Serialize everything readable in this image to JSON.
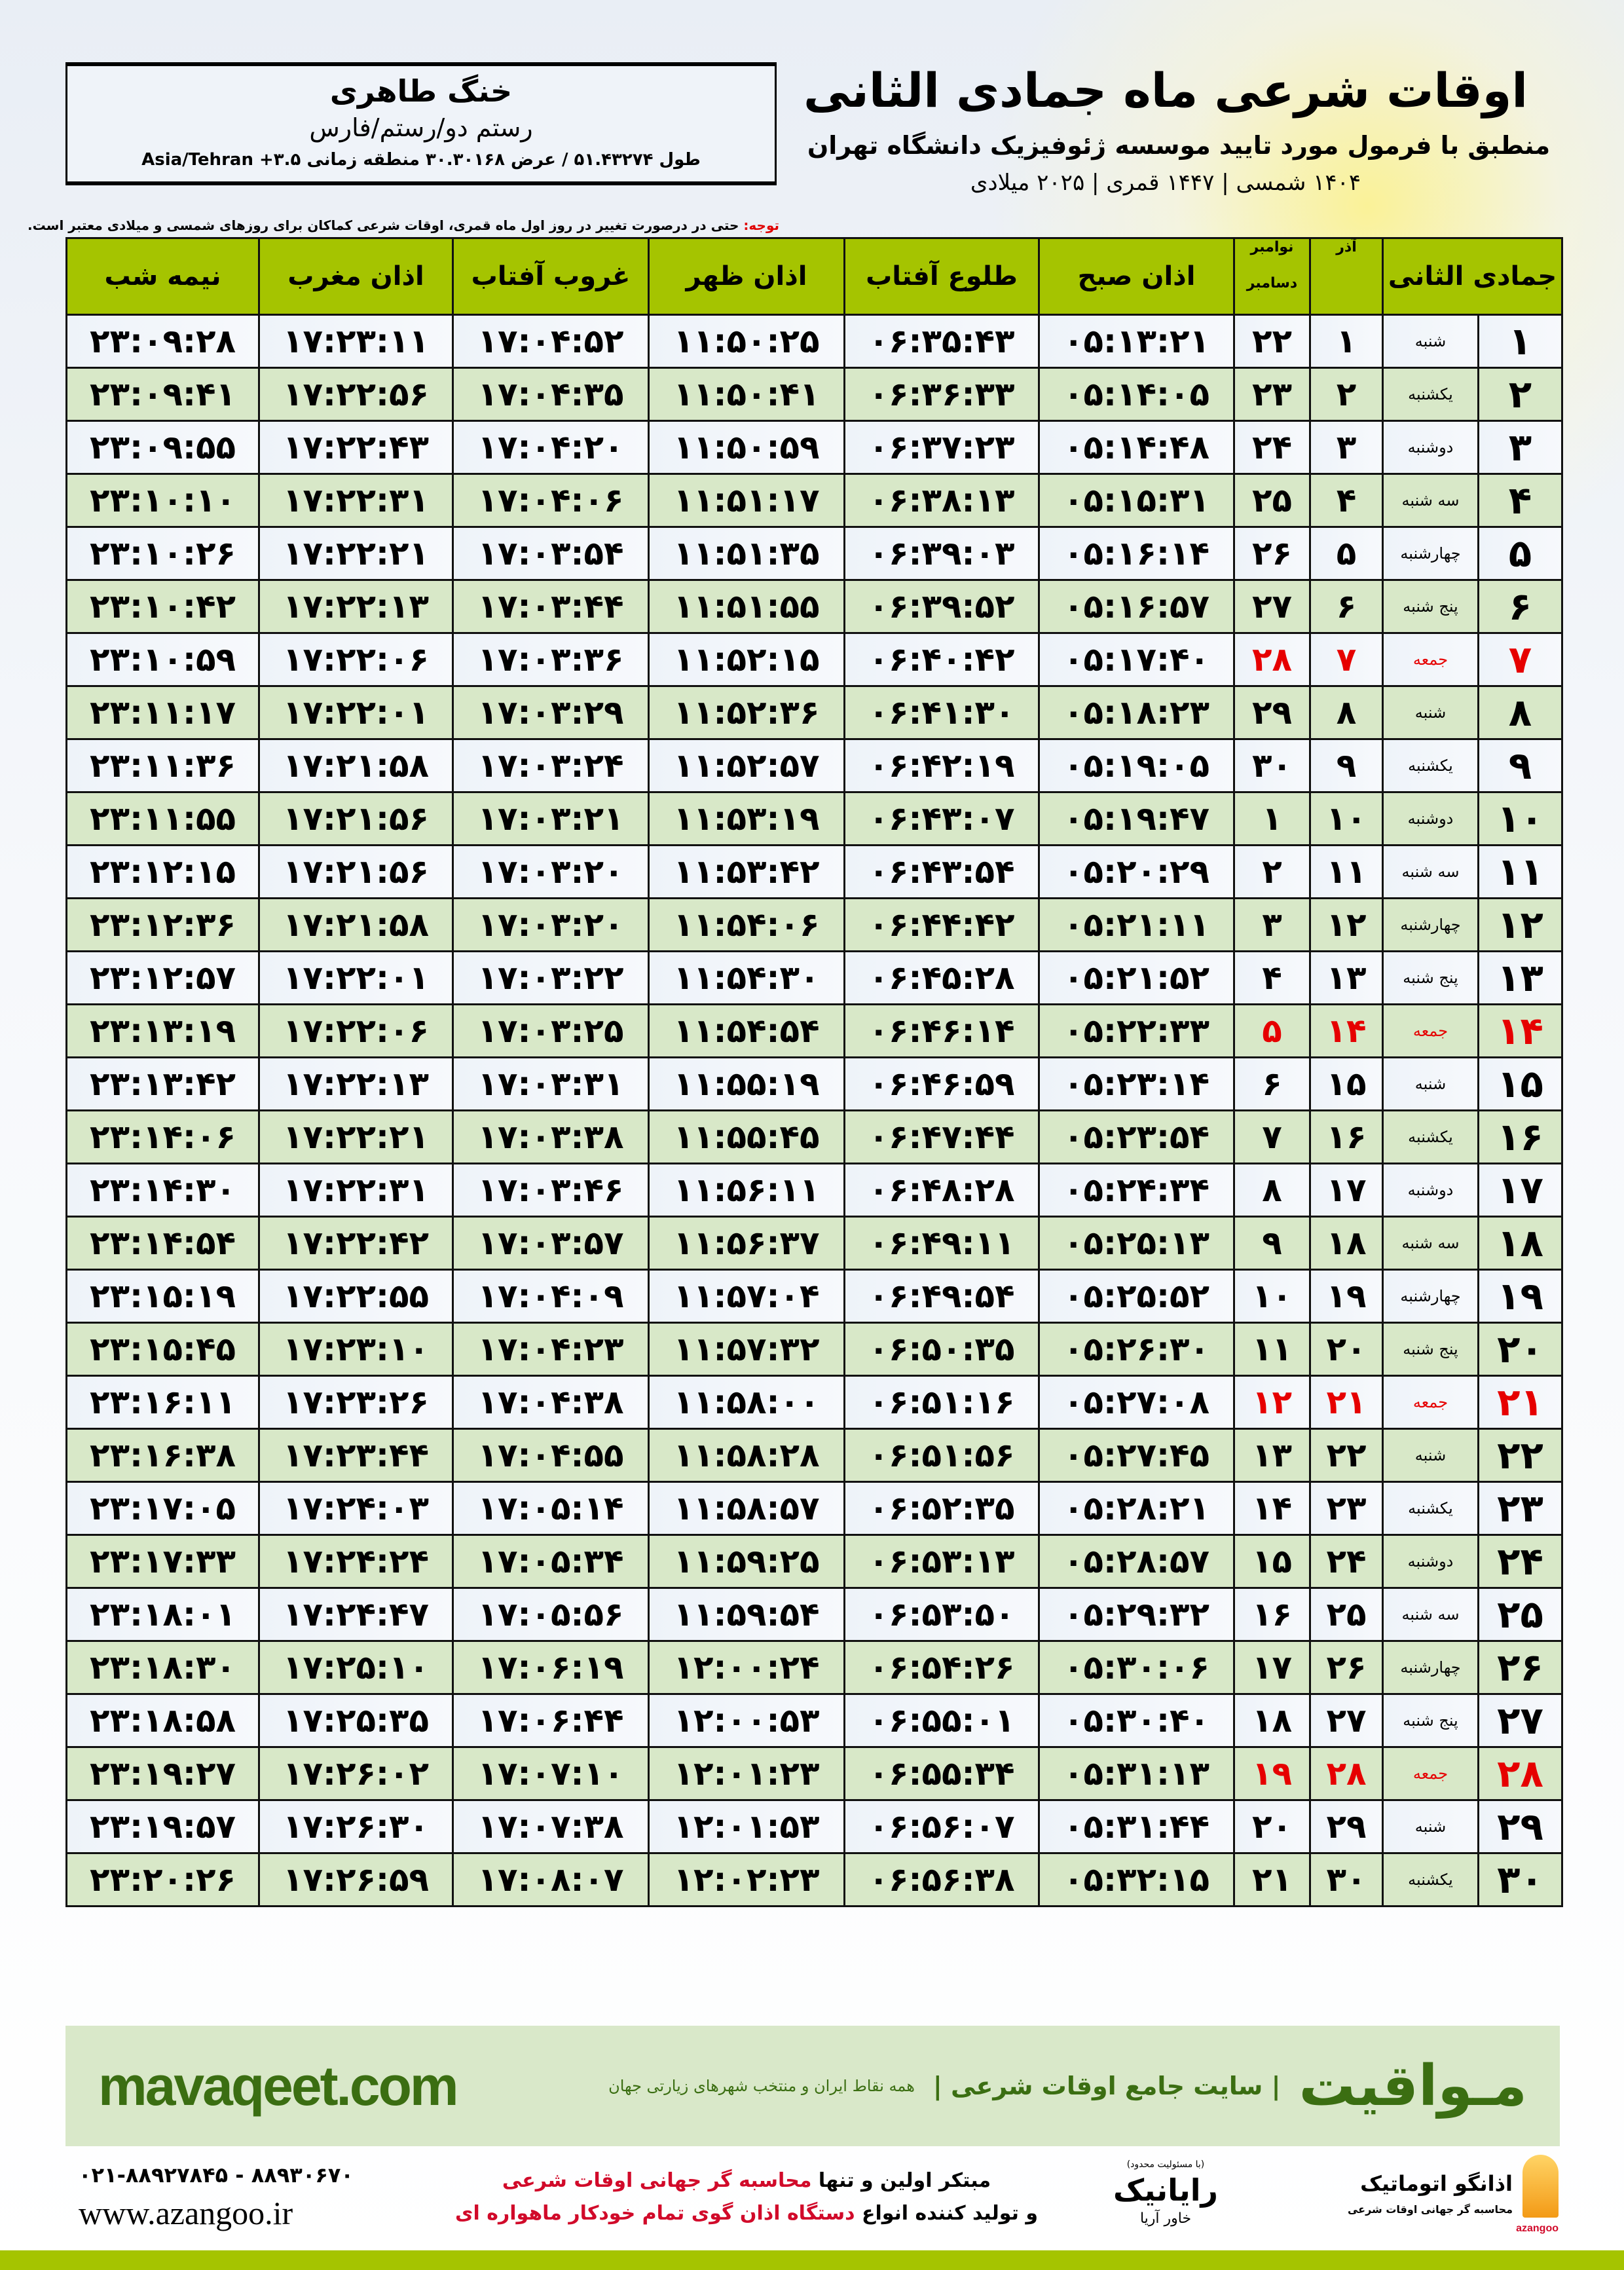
{
  "colors": {
    "header_green": "#a5c400",
    "row_green": "#d8e8c8",
    "friday_red": "#e60000",
    "brand_green": "#3b6e12",
    "promo_red": "#d10a2a"
  },
  "location": {
    "city": "خنگ طاهری",
    "path": "رستم دو/رستم/فارس",
    "coords": "طول ۵۱.۴۳۲۷۴ / عرض ۳۰.۳۰۱۶۸ منطقه زمانی ۳.۵+ Asia/Tehran"
  },
  "title": {
    "main": "اوقات شرعی ماه جمادی الثانی",
    "sub": "منطبق با فرمول مورد تایید موسسه ژئوفیزیک دانشگاه تهران",
    "dates": "۱۴۰۴ شمسی | ۱۴۴۷ قمری | ۲۰۲۵ میلادی"
  },
  "note": {
    "label": "توجه:",
    "text": " حتی در درصورت تغییر در روز اول ماه قمری، اوقات شرعی کماکان برای روزهای شمسی و میلادی معتبر است."
  },
  "table": {
    "headers": {
      "hijri": "جمادی الثانی",
      "azar": "آذر",
      "nov": "نوامبر",
      "dec": "دسامبر",
      "fajr": "اذان صبح",
      "sunrise": "طلوع آفتاب",
      "dhuhr": "اذان ظهر",
      "sunset": "غروب آفتاب",
      "maghrib": "اذان مغرب",
      "midnight": "نیمه شب"
    },
    "rows": [
      {
        "hijri": "۱",
        "weekday": "شنبه",
        "azar": "۱",
        "greg": "۲۲",
        "fajr": "۰۵:۱۳:۲۱",
        "sunrise": "۰۶:۳۵:۴۳",
        "dhuhr": "۱۱:۵۰:۲۵",
        "sunset": "۱۷:۰۴:۵۲",
        "maghrib": "۱۷:۲۳:۱۱",
        "midnight": "۲۳:۰۹:۲۸",
        "friday": false
      },
      {
        "hijri": "۲",
        "weekday": "یکشنبه",
        "azar": "۲",
        "greg": "۲۳",
        "fajr": "۰۵:۱۴:۰۵",
        "sunrise": "۰۶:۳۶:۳۳",
        "dhuhr": "۱۱:۵۰:۴۱",
        "sunset": "۱۷:۰۴:۳۵",
        "maghrib": "۱۷:۲۲:۵۶",
        "midnight": "۲۳:۰۹:۴۱",
        "friday": false
      },
      {
        "hijri": "۳",
        "weekday": "دوشنبه",
        "azar": "۳",
        "greg": "۲۴",
        "fajr": "۰۵:۱۴:۴۸",
        "sunrise": "۰۶:۳۷:۲۳",
        "dhuhr": "۱۱:۵۰:۵۹",
        "sunset": "۱۷:۰۴:۲۰",
        "maghrib": "۱۷:۲۲:۴۳",
        "midnight": "۲۳:۰۹:۵۵",
        "friday": false
      },
      {
        "hijri": "۴",
        "weekday": "سه شنبه",
        "azar": "۴",
        "greg": "۲۵",
        "fajr": "۰۵:۱۵:۳۱",
        "sunrise": "۰۶:۳۸:۱۳",
        "dhuhr": "۱۱:۵۱:۱۷",
        "sunset": "۱۷:۰۴:۰۶",
        "maghrib": "۱۷:۲۲:۳۱",
        "midnight": "۲۳:۱۰:۱۰",
        "friday": false
      },
      {
        "hijri": "۵",
        "weekday": "چهارشنبه",
        "azar": "۵",
        "greg": "۲۶",
        "fajr": "۰۵:۱۶:۱۴",
        "sunrise": "۰۶:۳۹:۰۳",
        "dhuhr": "۱۱:۵۱:۳۵",
        "sunset": "۱۷:۰۳:۵۴",
        "maghrib": "۱۷:۲۲:۲۱",
        "midnight": "۲۳:۱۰:۲۶",
        "friday": false
      },
      {
        "hijri": "۶",
        "weekday": "پنج شنبه",
        "azar": "۶",
        "greg": "۲۷",
        "fajr": "۰۵:۱۶:۵۷",
        "sunrise": "۰۶:۳۹:۵۲",
        "dhuhr": "۱۱:۵۱:۵۵",
        "sunset": "۱۷:۰۳:۴۴",
        "maghrib": "۱۷:۲۲:۱۳",
        "midnight": "۲۳:۱۰:۴۲",
        "friday": false
      },
      {
        "hijri": "۷",
        "weekday": "جمعه",
        "azar": "۷",
        "greg": "۲۸",
        "fajr": "۰۵:۱۷:۴۰",
        "sunrise": "۰۶:۴۰:۴۲",
        "dhuhr": "۱۱:۵۲:۱۵",
        "sunset": "۱۷:۰۳:۳۶",
        "maghrib": "۱۷:۲۲:۰۶",
        "midnight": "۲۳:۱۰:۵۹",
        "friday": true
      },
      {
        "hijri": "۸",
        "weekday": "شنبه",
        "azar": "۸",
        "greg": "۲۹",
        "fajr": "۰۵:۱۸:۲۳",
        "sunrise": "۰۶:۴۱:۳۰",
        "dhuhr": "۱۱:۵۲:۳۶",
        "sunset": "۱۷:۰۳:۲۹",
        "maghrib": "۱۷:۲۲:۰۱",
        "midnight": "۲۳:۱۱:۱۷",
        "friday": false
      },
      {
        "hijri": "۹",
        "weekday": "یکشنبه",
        "azar": "۹",
        "greg": "۳۰",
        "fajr": "۰۵:۱۹:۰۵",
        "sunrise": "۰۶:۴۲:۱۹",
        "dhuhr": "۱۱:۵۲:۵۷",
        "sunset": "۱۷:۰۳:۲۴",
        "maghrib": "۱۷:۲۱:۵۸",
        "midnight": "۲۳:۱۱:۳۶",
        "friday": false
      },
      {
        "hijri": "۱۰",
        "weekday": "دوشنبه",
        "azar": "۱۰",
        "greg": "۱",
        "fajr": "۰۵:۱۹:۴۷",
        "sunrise": "۰۶:۴۳:۰۷",
        "dhuhr": "۱۱:۵۳:۱۹",
        "sunset": "۱۷:۰۳:۲۱",
        "maghrib": "۱۷:۲۱:۵۶",
        "midnight": "۲۳:۱۱:۵۵",
        "friday": false
      },
      {
        "hijri": "۱۱",
        "weekday": "سه شنبه",
        "azar": "۱۱",
        "greg": "۲",
        "fajr": "۰۵:۲۰:۲۹",
        "sunrise": "۰۶:۴۳:۵۴",
        "dhuhr": "۱۱:۵۳:۴۲",
        "sunset": "۱۷:۰۳:۲۰",
        "maghrib": "۱۷:۲۱:۵۶",
        "midnight": "۲۳:۱۲:۱۵",
        "friday": false
      },
      {
        "hijri": "۱۲",
        "weekday": "چهارشنبه",
        "azar": "۱۲",
        "greg": "۳",
        "fajr": "۰۵:۲۱:۱۱",
        "sunrise": "۰۶:۴۴:۴۲",
        "dhuhr": "۱۱:۵۴:۰۶",
        "sunset": "۱۷:۰۳:۲۰",
        "maghrib": "۱۷:۲۱:۵۸",
        "midnight": "۲۳:۱۲:۳۶",
        "friday": false
      },
      {
        "hijri": "۱۳",
        "weekday": "پنج شنبه",
        "azar": "۱۳",
        "greg": "۴",
        "fajr": "۰۵:۲۱:۵۲",
        "sunrise": "۰۶:۴۵:۲۸",
        "dhuhr": "۱۱:۵۴:۳۰",
        "sunset": "۱۷:۰۳:۲۲",
        "maghrib": "۱۷:۲۲:۰۱",
        "midnight": "۲۳:۱۲:۵۷",
        "friday": false
      },
      {
        "hijri": "۱۴",
        "weekday": "جمعه",
        "azar": "۱۴",
        "greg": "۵",
        "fajr": "۰۵:۲۲:۳۳",
        "sunrise": "۰۶:۴۶:۱۴",
        "dhuhr": "۱۱:۵۴:۵۴",
        "sunset": "۱۷:۰۳:۲۵",
        "maghrib": "۱۷:۲۲:۰۶",
        "midnight": "۲۳:۱۳:۱۹",
        "friday": true
      },
      {
        "hijri": "۱۵",
        "weekday": "شنبه",
        "azar": "۱۵",
        "greg": "۶",
        "fajr": "۰۵:۲۳:۱۴",
        "sunrise": "۰۶:۴۶:۵۹",
        "dhuhr": "۱۱:۵۵:۱۹",
        "sunset": "۱۷:۰۳:۳۱",
        "maghrib": "۱۷:۲۲:۱۳",
        "midnight": "۲۳:۱۳:۴۲",
        "friday": false
      },
      {
        "hijri": "۱۶",
        "weekday": "یکشنبه",
        "azar": "۱۶",
        "greg": "۷",
        "fajr": "۰۵:۲۳:۵۴",
        "sunrise": "۰۶:۴۷:۴۴",
        "dhuhr": "۱۱:۵۵:۴۵",
        "sunset": "۱۷:۰۳:۳۸",
        "maghrib": "۱۷:۲۲:۲۱",
        "midnight": "۲۳:۱۴:۰۶",
        "friday": false
      },
      {
        "hijri": "۱۷",
        "weekday": "دوشنبه",
        "azar": "۱۷",
        "greg": "۸",
        "fajr": "۰۵:۲۴:۳۴",
        "sunrise": "۰۶:۴۸:۲۸",
        "dhuhr": "۱۱:۵۶:۱۱",
        "sunset": "۱۷:۰۳:۴۶",
        "maghrib": "۱۷:۲۲:۳۱",
        "midnight": "۲۳:۱۴:۳۰",
        "friday": false
      },
      {
        "hijri": "۱۸",
        "weekday": "سه شنبه",
        "azar": "۱۸",
        "greg": "۹",
        "fajr": "۰۵:۲۵:۱۳",
        "sunrise": "۰۶:۴۹:۱۱",
        "dhuhr": "۱۱:۵۶:۳۷",
        "sunset": "۱۷:۰۳:۵۷",
        "maghrib": "۱۷:۲۲:۴۲",
        "midnight": "۲۳:۱۴:۵۴",
        "friday": false
      },
      {
        "hijri": "۱۹",
        "weekday": "چهارشنبه",
        "azar": "۱۹",
        "greg": "۱۰",
        "fajr": "۰۵:۲۵:۵۲",
        "sunrise": "۰۶:۴۹:۵۴",
        "dhuhr": "۱۱:۵۷:۰۴",
        "sunset": "۱۷:۰۴:۰۹",
        "maghrib": "۱۷:۲۲:۵۵",
        "midnight": "۲۳:۱۵:۱۹",
        "friday": false
      },
      {
        "hijri": "۲۰",
        "weekday": "پنج شنبه",
        "azar": "۲۰",
        "greg": "۱۱",
        "fajr": "۰۵:۲۶:۳۰",
        "sunrise": "۰۶:۵۰:۳۵",
        "dhuhr": "۱۱:۵۷:۳۲",
        "sunset": "۱۷:۰۴:۲۳",
        "maghrib": "۱۷:۲۳:۱۰",
        "midnight": "۲۳:۱۵:۴۵",
        "friday": false
      },
      {
        "hijri": "۲۱",
        "weekday": "جمعه",
        "azar": "۲۱",
        "greg": "۱۲",
        "fajr": "۰۵:۲۷:۰۸",
        "sunrise": "۰۶:۵۱:۱۶",
        "dhuhr": "۱۱:۵۸:۰۰",
        "sunset": "۱۷:۰۴:۳۸",
        "maghrib": "۱۷:۲۳:۲۶",
        "midnight": "۲۳:۱۶:۱۱",
        "friday": true
      },
      {
        "hijri": "۲۲",
        "weekday": "شنبه",
        "azar": "۲۲",
        "greg": "۱۳",
        "fajr": "۰۵:۲۷:۴۵",
        "sunrise": "۰۶:۵۱:۵۶",
        "dhuhr": "۱۱:۵۸:۲۸",
        "sunset": "۱۷:۰۴:۵۵",
        "maghrib": "۱۷:۲۳:۴۴",
        "midnight": "۲۳:۱۶:۳۸",
        "friday": false
      },
      {
        "hijri": "۲۳",
        "weekday": "یکشنبه",
        "azar": "۲۳",
        "greg": "۱۴",
        "fajr": "۰۵:۲۸:۲۱",
        "sunrise": "۰۶:۵۲:۳۵",
        "dhuhr": "۱۱:۵۸:۵۷",
        "sunset": "۱۷:۰۵:۱۴",
        "maghrib": "۱۷:۲۴:۰۳",
        "midnight": "۲۳:۱۷:۰۵",
        "friday": false
      },
      {
        "hijri": "۲۴",
        "weekday": "دوشنبه",
        "azar": "۲۴",
        "greg": "۱۵",
        "fajr": "۰۵:۲۸:۵۷",
        "sunrise": "۰۶:۵۳:۱۳",
        "dhuhr": "۱۱:۵۹:۲۵",
        "sunset": "۱۷:۰۵:۳۴",
        "maghrib": "۱۷:۲۴:۲۴",
        "midnight": "۲۳:۱۷:۳۳",
        "friday": false
      },
      {
        "hijri": "۲۵",
        "weekday": "سه شنبه",
        "azar": "۲۵",
        "greg": "۱۶",
        "fajr": "۰۵:۲۹:۳۲",
        "sunrise": "۰۶:۵۳:۵۰",
        "dhuhr": "۱۱:۵۹:۵۴",
        "sunset": "۱۷:۰۵:۵۶",
        "maghrib": "۱۷:۲۴:۴۷",
        "midnight": "۲۳:۱۸:۰۱",
        "friday": false
      },
      {
        "hijri": "۲۶",
        "weekday": "چهارشنبه",
        "azar": "۲۶",
        "greg": "۱۷",
        "fajr": "۰۵:۳۰:۰۶",
        "sunrise": "۰۶:۵۴:۲۶",
        "dhuhr": "۱۲:۰۰:۲۴",
        "sunset": "۱۷:۰۶:۱۹",
        "maghrib": "۱۷:۲۵:۱۰",
        "midnight": "۲۳:۱۸:۳۰",
        "friday": false
      },
      {
        "hijri": "۲۷",
        "weekday": "پنج شنبه",
        "azar": "۲۷",
        "greg": "۱۸",
        "fajr": "۰۵:۳۰:۴۰",
        "sunrise": "۰۶:۵۵:۰۱",
        "dhuhr": "۱۲:۰۰:۵۳",
        "sunset": "۱۷:۰۶:۴۴",
        "maghrib": "۱۷:۲۵:۳۵",
        "midnight": "۲۳:۱۸:۵۸",
        "friday": false
      },
      {
        "hijri": "۲۸",
        "weekday": "جمعه",
        "azar": "۲۸",
        "greg": "۱۹",
        "fajr": "۰۵:۳۱:۱۳",
        "sunrise": "۰۶:۵۵:۳۴",
        "dhuhr": "۱۲:۰۱:۲۳",
        "sunset": "۱۷:۰۷:۱۰",
        "maghrib": "۱۷:۲۶:۰۲",
        "midnight": "۲۳:۱۹:۲۷",
        "friday": true
      },
      {
        "hijri": "۲۹",
        "weekday": "شنبه",
        "azar": "۲۹",
        "greg": "۲۰",
        "fajr": "۰۵:۳۱:۴۴",
        "sunrise": "۰۶:۵۶:۰۷",
        "dhuhr": "۱۲:۰۱:۵۳",
        "sunset": "۱۷:۰۷:۳۸",
        "maghrib": "۱۷:۲۶:۳۰",
        "midnight": "۲۳:۱۹:۵۷",
        "friday": false
      },
      {
        "hijri": "۳۰",
        "weekday": "یکشنبه",
        "azar": "۳۰",
        "greg": "۲۱",
        "fajr": "۰۵:۳۲:۱۵",
        "sunrise": "۰۶:۵۶:۳۸",
        "dhuhr": "۱۲:۰۲:۲۳",
        "sunset": "۱۷:۰۸:۰۷",
        "maghrib": "۱۷:۲۶:۵۹",
        "midnight": "۲۳:۲۰:۲۶",
        "friday": false
      }
    ]
  },
  "footer": {
    "brand": "مـواقیت",
    "slogan": "| سایت جامع اوقات شرعی |",
    "subslogan": "همه نقاط ایران و منتخب شهرهای زیارتی جهان",
    "site": "mavaqeet.com",
    "phone": "۰۲۱-۸۸۹۲۷۸۴۵ - ۸۸۹۳۰۶۷۰",
    "www": "www.azangoo.ir",
    "promo1_a": "مبتکر اولین و تنها ",
    "promo1_b": "محاسبه گر جهانی اوقات شرعی",
    "promo2_a": "و تولید کننده انواع ",
    "promo2_b": "دستگاه اذان گوی تمام خودکار ماهواره ای",
    "rayanik_note": "(با مسئولیت محدود)",
    "rayanik": "رایانیک",
    "rayanik_sub": "خاور آریا",
    "azangoo_name": "اذانگو اتوماتیک",
    "azangoo_sub": "محاسبه گر جهانی اوقات شرعی",
    "azangoo_en": "azangoo"
  }
}
